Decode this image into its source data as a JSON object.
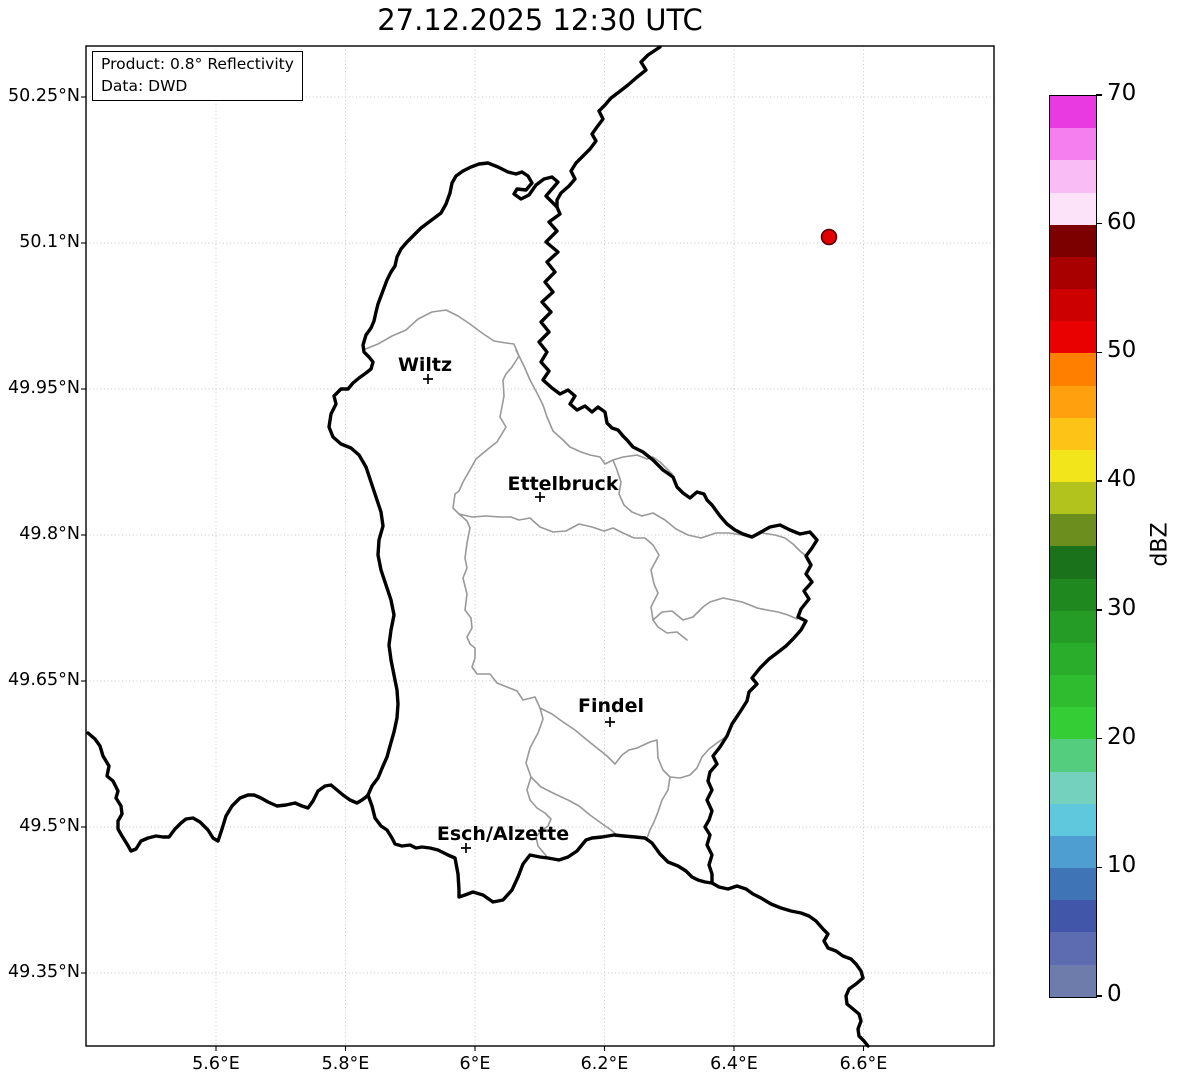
{
  "title": "27.12.2025 12:30 UTC",
  "info_box": {
    "product_line": "Product: 0.8° Reflectivity",
    "data_line": "Data: DWD"
  },
  "map": {
    "cities": [
      {
        "name": "Wiltz"
      },
      {
        "name": "Ettelbruck"
      },
      {
        "name": "Findel"
      },
      {
        "name": "Esch/Alzette"
      }
    ],
    "radar_marker": {
      "color": "#e00000",
      "edge_color": "#550000"
    }
  },
  "axes": {
    "x_ticks": [
      {
        "label": "5.6°E",
        "value": 5.6
      },
      {
        "label": "5.8°E",
        "value": 5.8
      },
      {
        "label": "6°E",
        "value": 6.0
      },
      {
        "label": "6.2°E",
        "value": 6.2
      },
      {
        "label": "6.4°E",
        "value": 6.4
      },
      {
        "label": "6.6°E",
        "value": 6.6
      }
    ],
    "y_ticks": [
      {
        "label": "50.25°N",
        "value": 50.25
      },
      {
        "label": "50.1°N",
        "value": 50.1
      },
      {
        "label": "49.95°N",
        "value": 49.95
      },
      {
        "label": "49.8°N",
        "value": 49.8
      },
      {
        "label": "49.65°N",
        "value": 49.65
      },
      {
        "label": "49.5°N",
        "value": 49.5
      },
      {
        "label": "49.35°N",
        "value": 49.35
      }
    ]
  },
  "colorbar": {
    "label": "dBZ",
    "min": 0,
    "max": 70,
    "step": 2.5,
    "ticks": [
      0,
      10,
      20,
      30,
      40,
      50,
      60,
      70
    ],
    "colors_bottom_to_top": [
      "#6e7cac",
      "#5d6bb0",
      "#4156a9",
      "#3f74b6",
      "#4f9ed1",
      "#5fc8dc",
      "#74d1bd",
      "#55cd7f",
      "#35cd35",
      "#2fbd2f",
      "#2aad2a",
      "#259c25",
      "#1f881f",
      "#1a721a",
      "#6b8e1e",
      "#b3c31d",
      "#f3e51c",
      "#fdc316",
      "#ffa10e",
      "#ff7f00",
      "#e90000",
      "#cd0000",
      "#a80000",
      "#7c0000",
      "#fce3fa",
      "#f9bcf4",
      "#f57fee",
      "#e83ae0"
    ]
  }
}
